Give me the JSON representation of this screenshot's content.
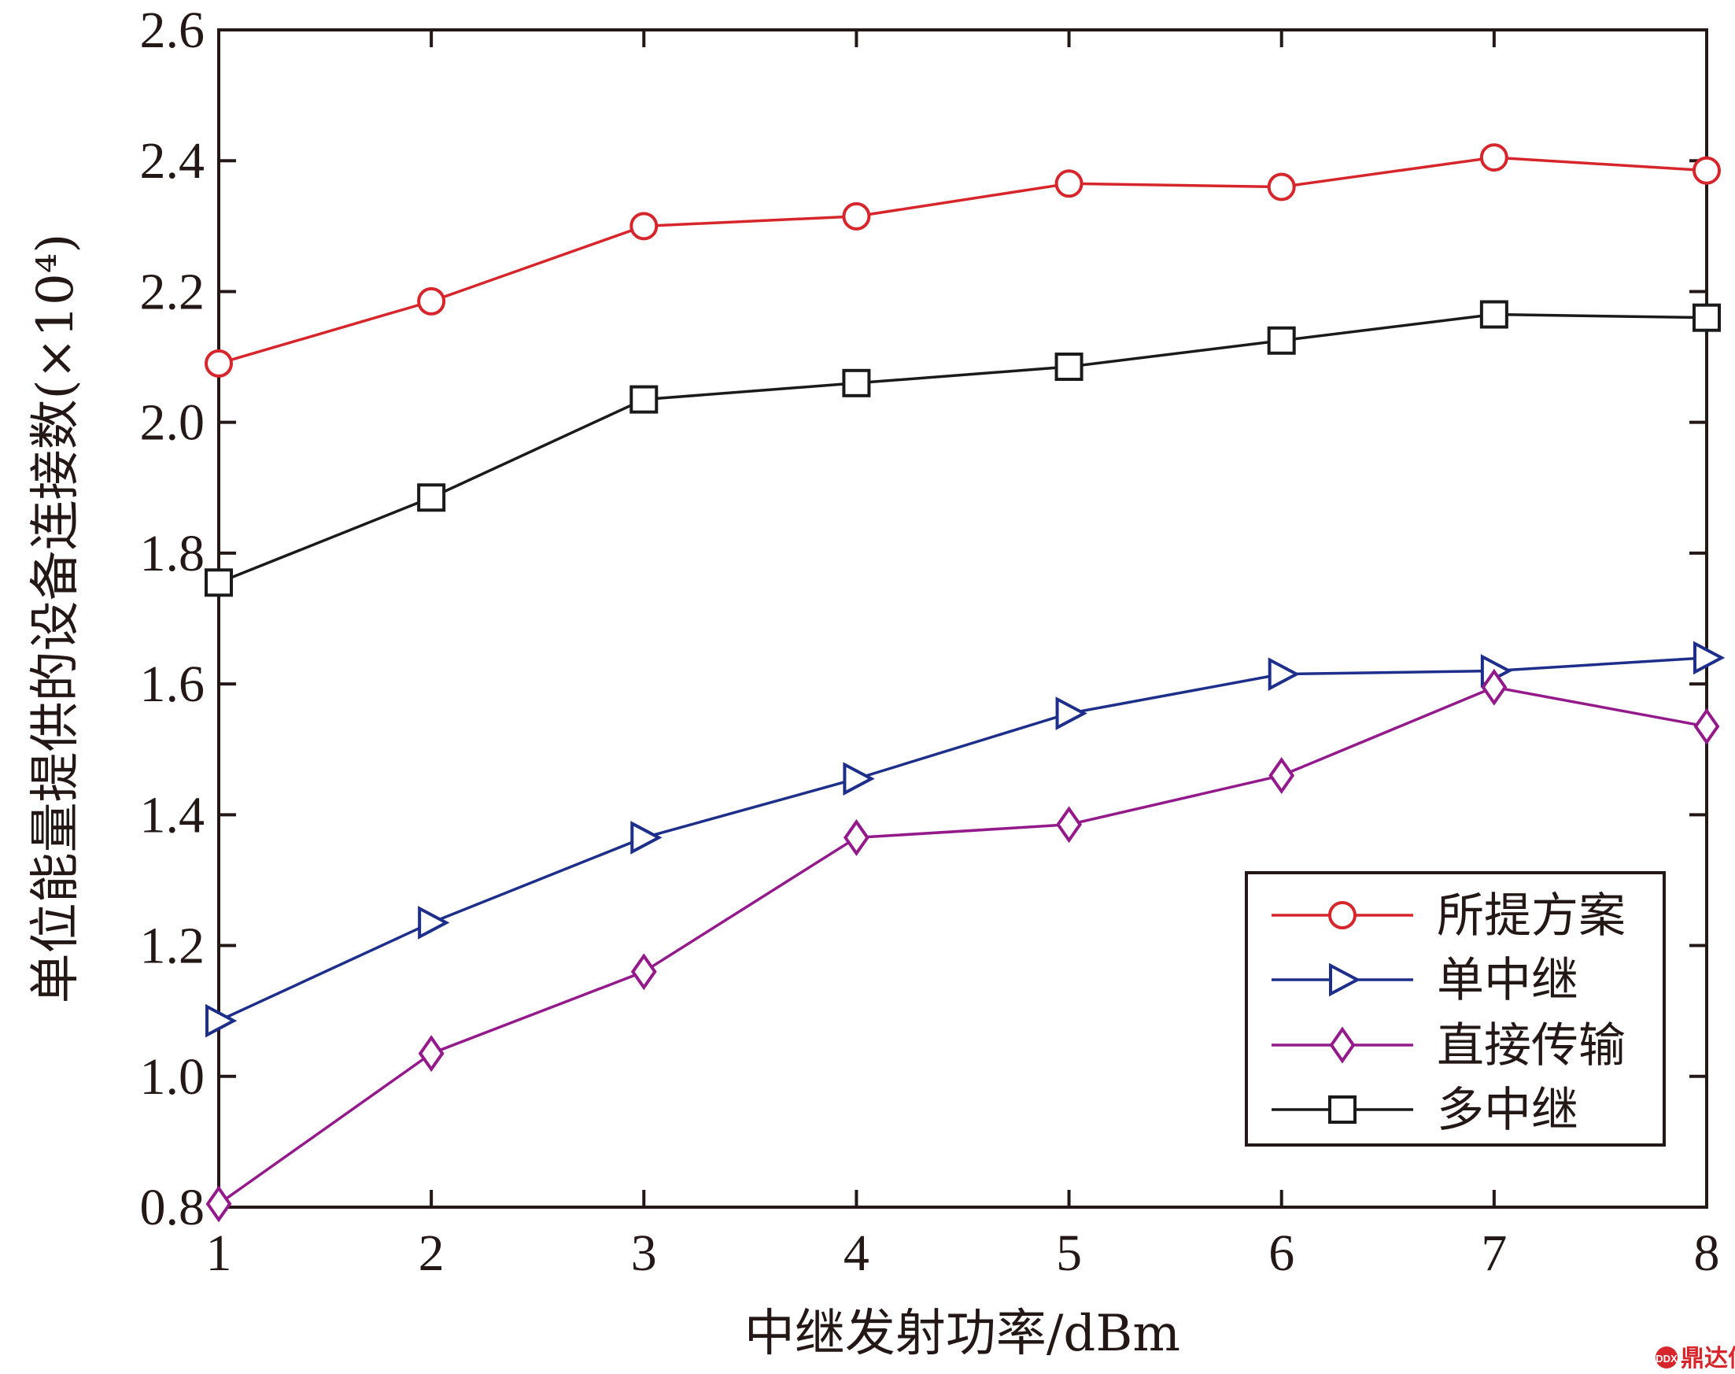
{
  "chart_data": {
    "type": "line",
    "title": "",
    "xlabel": "中继发射功率/dBm",
    "ylabel": "单位能量提供的设备连接数(×10⁴)",
    "x": [
      1,
      2,
      3,
      4,
      5,
      6,
      7,
      8
    ],
    "xlim": [
      1,
      8
    ],
    "ylim": [
      0.8,
      2.6
    ],
    "xticks": [
      "1",
      "2",
      "3",
      "4",
      "5",
      "6",
      "7",
      "8"
    ],
    "yticks": [
      "0.8",
      "1.0",
      "1.2",
      "1.4",
      "1.6",
      "1.8",
      "2.0",
      "2.2",
      "2.4",
      "2.6"
    ],
    "grid": false,
    "legend_position": "bottom-right",
    "series": [
      {
        "name": "所提方案",
        "color": "#d7262b",
        "marker": "circle",
        "values": [
          2.09,
          2.185,
          2.3,
          2.315,
          2.365,
          2.36,
          2.405,
          2.385
        ]
      },
      {
        "name": "单中继",
        "color": "#1d2f8a",
        "marker": "triangle-right",
        "values": [
          1.085,
          1.235,
          1.365,
          1.455,
          1.555,
          1.615,
          1.62,
          1.64
        ]
      },
      {
        "name": "直接传输",
        "color": "#941a8c",
        "marker": "diamond",
        "values": [
          0.805,
          1.035,
          1.16,
          1.365,
          1.385,
          1.46,
          1.595,
          1.535
        ]
      },
      {
        "name": "多中继",
        "color": "#1a1a1a",
        "marker": "square",
        "values": [
          1.755,
          1.885,
          2.035,
          2.06,
          2.085,
          2.125,
          2.165,
          2.16
        ]
      }
    ]
  },
  "watermark": {
    "text": "鼎达信",
    "logo_text": "DDX",
    "color": "#d7262b"
  }
}
